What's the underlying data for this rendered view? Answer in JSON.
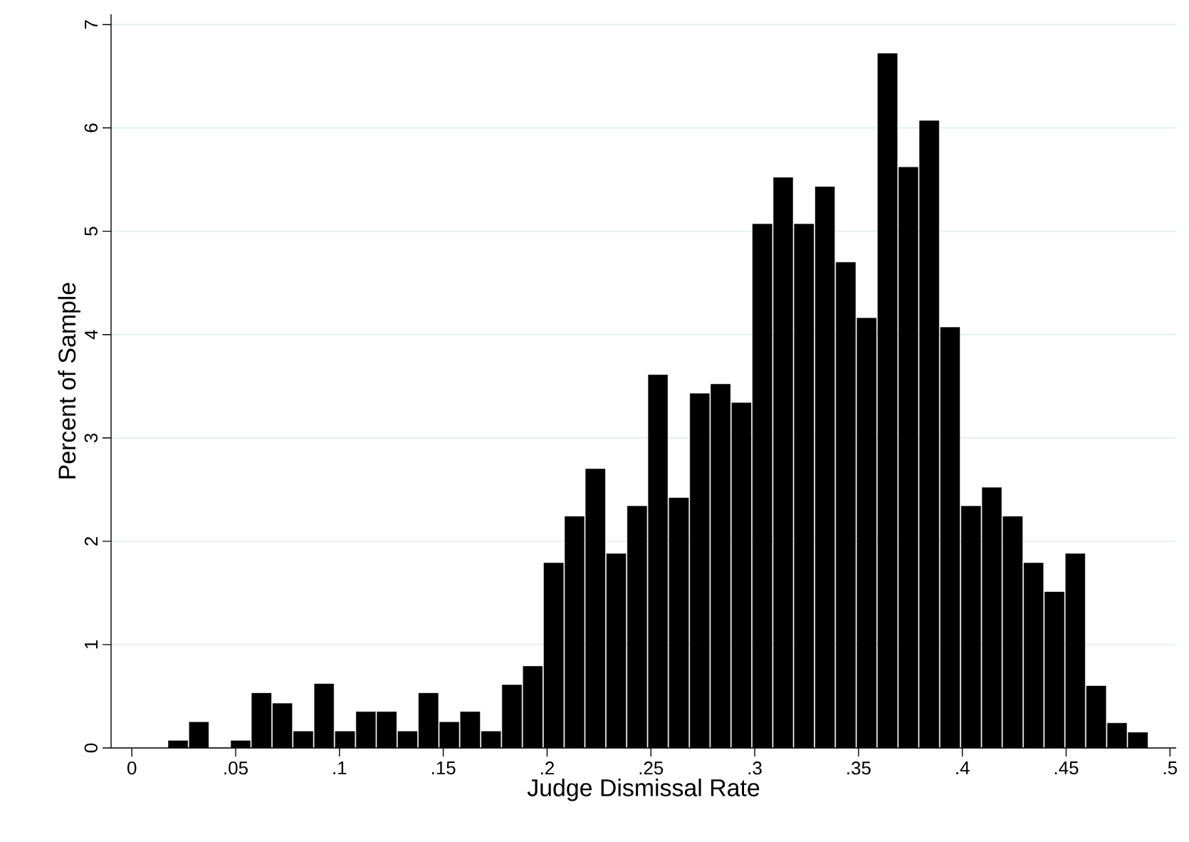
{
  "chart_data": {
    "type": "histogram",
    "xlabel": "Judge Dismissal Rate",
    "ylabel": "Percent of Sample",
    "bins": [
      0.0172,
      0.0273,
      0.0373,
      0.0474,
      0.0574,
      0.0675,
      0.0775,
      0.0876,
      0.0976,
      0.1077,
      0.1177,
      0.1278,
      0.1378,
      0.1479,
      0.1579,
      0.168,
      0.178,
      0.1881,
      0.1981,
      0.2082,
      0.2182,
      0.2283,
      0.2383,
      0.2484,
      0.2584,
      0.2685,
      0.2785,
      0.2886,
      0.2986,
      0.3087,
      0.3187,
      0.3288,
      0.3388,
      0.3489,
      0.3589,
      0.369,
      0.379,
      0.3891,
      0.3991,
      0.4092,
      0.4192,
      0.4293,
      0.4393,
      0.4494,
      0.4594,
      0.4695,
      0.4795,
      0.4896
    ],
    "values": [
      0.07,
      0.25,
      0,
      0.07,
      0.53,
      0.43,
      0.16,
      0.62,
      0.16,
      0.35,
      0.35,
      0.16,
      0.53,
      0.25,
      0.35,
      0.16,
      0.61,
      0.79,
      1.79,
      2.24,
      2.7,
      1.88,
      2.34,
      3.61,
      2.42,
      3.43,
      3.52,
      3.34,
      5.07,
      5.52,
      5.07,
      5.43,
      4.7,
      4.16,
      6.72,
      5.62,
      6.07,
      4.07,
      2.34,
      2.52,
      2.24,
      1.79,
      1.51,
      1.88,
      0.6,
      0.24,
      0.15
    ],
    "color": "#000000",
    "xlim": [
      -0.01,
      0.503
    ],
    "ylim": [
      0,
      7.1
    ],
    "xticks": [
      0,
      {
        "value": 0.05,
        "label": ".05"
      },
      {
        "value": 0.1,
        "label": ".1"
      },
      {
        "value": 0.15,
        "label": ".15"
      },
      {
        "value": 0.2,
        "label": ".2"
      },
      {
        "value": 0.25,
        "label": ".25"
      },
      {
        "value": 0.3,
        "label": ".3"
      },
      {
        "value": 0.35,
        "label": ".35"
      },
      {
        "value": 0.4,
        "label": ".4"
      },
      {
        "value": 0.45,
        "label": ".45"
      },
      {
        "value": 0.5,
        "label": ".5"
      }
    ],
    "yticks": [
      0,
      1,
      2,
      3,
      4,
      5,
      6,
      7
    ],
    "grid": "y"
  }
}
